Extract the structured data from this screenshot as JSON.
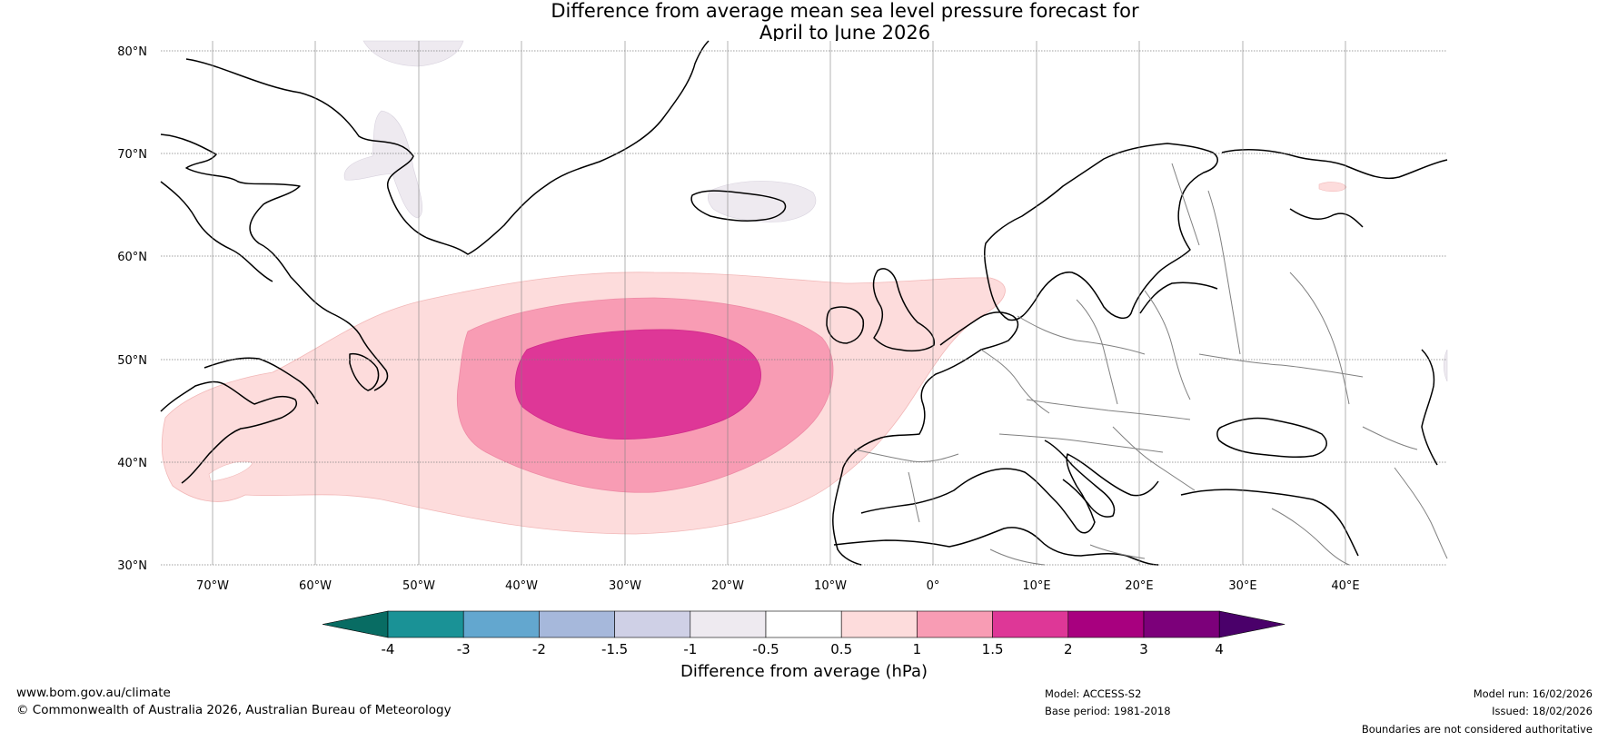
{
  "title_line1": "Difference from average mean sea level pressure forecast for",
  "title_line2": "April to June 2026",
  "lat_labels": [
    "80°N",
    "70°N",
    "60°N",
    "50°N",
    "40°N",
    "30°N"
  ],
  "lon_labels": [
    "70°W",
    "60°W",
    "50°W",
    "40°W",
    "30°W",
    "20°W",
    "10°W",
    "0°",
    "10°E",
    "20°E",
    "30°E",
    "40°E"
  ],
  "colorbar": {
    "labels": [
      "-4",
      "-3",
      "-2",
      "-1.5",
      "-1",
      "-0.5",
      "0.5",
      "1",
      "1.5",
      "2",
      "3",
      "4"
    ],
    "colors": [
      "#086c63",
      "#1a9296",
      "#63a7cf",
      "#a6b8db",
      "#cfd0e6",
      "#eeeaf0",
      "#ffffff",
      "#fddcdc",
      "#f89cb4",
      "#de3797",
      "#a8007f",
      "#7c007a",
      "#4a006a"
    ],
    "title": "Difference from average (hPa)"
  },
  "footer": {
    "website": "www.bom.gov.au/climate",
    "copyright": "© Commonwealth of Australia 2026, Australian Bureau of Meteorology",
    "model": "Model: ACCESS-S2",
    "base_period": "Base period: 1981-2018",
    "model_run": "Model run: 16/02/2026",
    "issued": "Issued: 18/02/2026",
    "disclaimer": "Boundaries are not considered authoritative"
  }
}
